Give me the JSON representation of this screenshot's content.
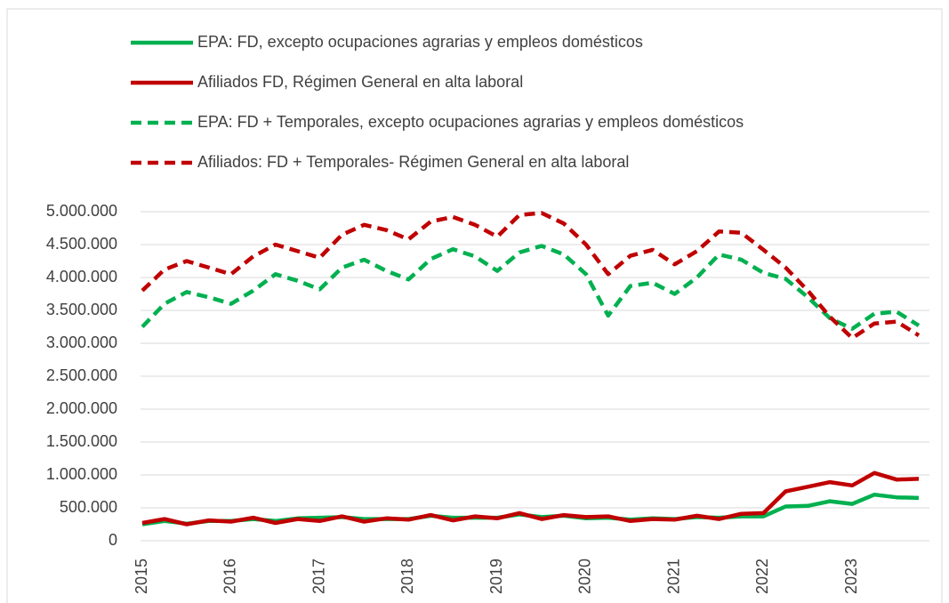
{
  "chart_data": {
    "type": "line",
    "categories": [
      "2015",
      null,
      null,
      null,
      "2016",
      null,
      null,
      null,
      "2017",
      null,
      null,
      null,
      "2018",
      null,
      null,
      null,
      "2019",
      null,
      null,
      null,
      "2020",
      null,
      null,
      null,
      "2021",
      null,
      null,
      null,
      "2022",
      null,
      null,
      null,
      "2023",
      null,
      null,
      null
    ],
    "series": [
      {
        "name": "EPA: FD,  excepto ocupaciones agrarias y empleos domésticos",
        "color": "#00b050",
        "dashed": false,
        "values": [
          250000,
          300000,
          260000,
          300000,
          300000,
          330000,
          300000,
          340000,
          350000,
          360000,
          330000,
          330000,
          330000,
          380000,
          350000,
          350000,
          350000,
          400000,
          360000,
          380000,
          340000,
          350000,
          320000,
          340000,
          330000,
          360000,
          350000,
          370000,
          370000,
          520000,
          530000,
          600000,
          560000,
          700000,
          660000,
          650000
        ]
      },
      {
        "name": "Afiliados FD, Régimen General en alta laboral",
        "color": "#c00000",
        "dashed": false,
        "values": [
          270000,
          330000,
          250000,
          310000,
          290000,
          350000,
          270000,
          330000,
          300000,
          370000,
          290000,
          340000,
          320000,
          390000,
          310000,
          370000,
          340000,
          420000,
          330000,
          390000,
          360000,
          370000,
          300000,
          330000,
          320000,
          380000,
          330000,
          410000,
          420000,
          750000,
          820000,
          890000,
          840000,
          1030000,
          930000,
          940000
        ]
      },
      {
        "name": "EPA: FD + Temporales, excepto ocupaciones agrarias y empleos domésticos",
        "color": "#00b050",
        "dashed": true,
        "values": [
          3250000,
          3600000,
          3780000,
          3700000,
          3600000,
          3800000,
          4050000,
          3950000,
          3820000,
          4150000,
          4270000,
          4100000,
          3970000,
          4280000,
          4430000,
          4320000,
          4100000,
          4380000,
          4480000,
          4350000,
          4050000,
          3420000,
          3870000,
          3920000,
          3750000,
          4000000,
          4350000,
          4270000,
          4070000,
          3980000,
          3700000,
          3380000,
          3220000,
          3450000,
          3480000,
          3270000
        ]
      },
      {
        "name": "Afiliados: FD + Temporales- Régimen General en alta laboral",
        "color": "#c00000",
        "dashed": true,
        "values": [
          3800000,
          4120000,
          4250000,
          4150000,
          4050000,
          4320000,
          4500000,
          4400000,
          4300000,
          4650000,
          4800000,
          4720000,
          4580000,
          4850000,
          4920000,
          4800000,
          4620000,
          4950000,
          4980000,
          4820000,
          4500000,
          4050000,
          4330000,
          4420000,
          4200000,
          4400000,
          4700000,
          4680000,
          4420000,
          4150000,
          3800000,
          3400000,
          3080000,
          3300000,
          3330000,
          3120000
        ]
      }
    ],
    "ylim": [
      0,
      5000000
    ],
    "yticks": [
      0,
      {
        "value": 500000,
        "label": "500.000"
      },
      {
        "value": 1000000,
        "label": "1.000.000"
      },
      {
        "value": 1500000,
        "label": "1.500.000"
      },
      {
        "value": 2000000,
        "label": "2.000.000"
      },
      {
        "value": 2500000,
        "label": "2.500.000"
      },
      {
        "value": 3000000,
        "label": "3.000.000"
      },
      {
        "value": 3500000,
        "label": "3.500.000"
      },
      {
        "value": 4000000,
        "label": "4.000.000"
      },
      {
        "value": 4500000,
        "label": "4.500.000"
      },
      {
        "value": 5000000,
        "label": "5.000.000"
      }
    ],
    "grid": true,
    "legend": "top"
  }
}
